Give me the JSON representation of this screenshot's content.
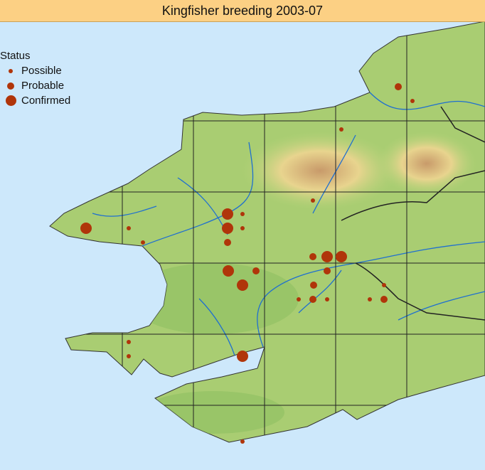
{
  "header": {
    "title": "Kingfisher breeding 2003-07"
  },
  "legend": {
    "title": "Status",
    "items": [
      "Possible",
      "Probable",
      "Confirmed"
    ]
  }
}
